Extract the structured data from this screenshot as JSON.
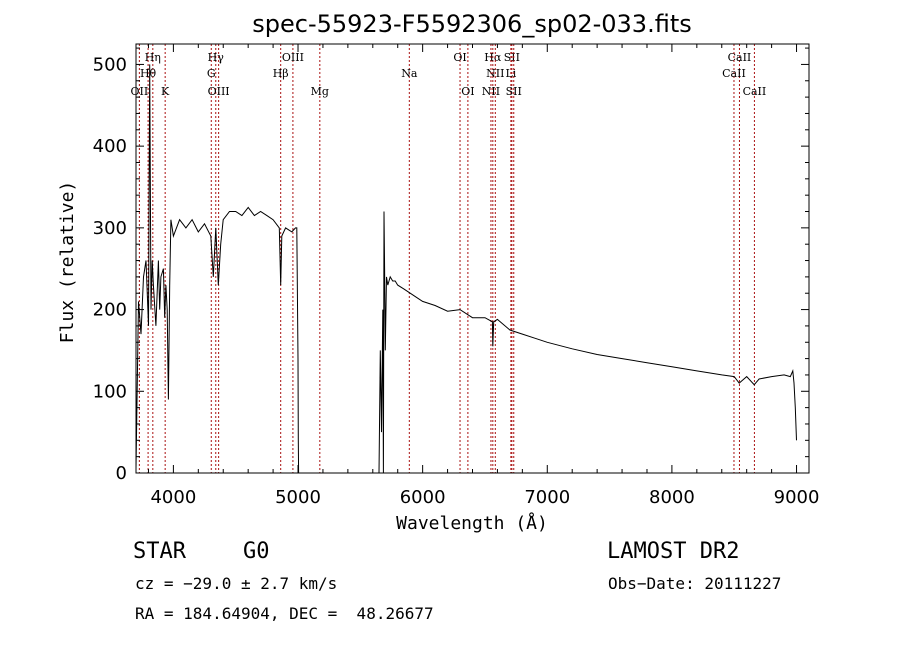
{
  "chart_data": {
    "type": "line",
    "title": "spec-55923-F5592306_sp02-033.fits",
    "xlabel": "Wavelength (Å)",
    "ylabel": "Flux (relative)",
    "xlim": [
      3700,
      9100
    ],
    "ylim": [
      0,
      525
    ],
    "xticks": [
      4000,
      5000,
      6000,
      7000,
      8000,
      9000
    ],
    "yticks": [
      0,
      100,
      200,
      300,
      400,
      500
    ],
    "grid": false,
    "series": [
      {
        "x": [
          3700,
          3720,
          3740,
          3760,
          3780,
          3800,
          3810,
          3820,
          3830,
          3840,
          3860,
          3880,
          3890,
          3900,
          3920,
          3930,
          3940,
          3950,
          3960,
          3970,
          3980,
          4000,
          4050,
          4100,
          4150,
          4200,
          4250,
          4300,
          4320,
          4340,
          4360,
          4380,
          4400,
          4450,
          4500,
          4550,
          4600,
          4650,
          4700,
          4750,
          4800,
          4850,
          4861,
          4870,
          4900,
          4950,
          4980,
          4990,
          5000,
          5002,
          5005
        ],
        "y": [
          5,
          210,
          170,
          240,
          260,
          180,
          500,
          200,
          260,
          230,
          180,
          260,
          200,
          240,
          250,
          190,
          230,
          200,
          90,
          230,
          310,
          290,
          310,
          300,
          310,
          295,
          305,
          290,
          240,
          300,
          230,
          280,
          310,
          320,
          320,
          315,
          325,
          315,
          320,
          315,
          310,
          300,
          230,
          290,
          300,
          295,
          300,
          300,
          140,
          40,
          0
        ]
      },
      {
        "x": [
          5650,
          5660,
          5670,
          5680,
          5685,
          5690,
          5695,
          5700,
          5710,
          5720,
          5740,
          5760,
          5780,
          5800,
          5850,
          5900,
          5950,
          6000,
          6100,
          6200,
          6300,
          6400,
          6500,
          6560,
          6563,
          6570,
          6600,
          6700,
          6800,
          6900,
          7000,
          7200,
          7400,
          7600,
          7800,
          8000,
          8200,
          8400,
          8500,
          8540,
          8600,
          8660,
          8700,
          8800,
          8900,
          8950,
          8970,
          8980,
          8990,
          9000
        ],
        "y": [
          0,
          150,
          50,
          200,
          0,
          320,
          250,
          150,
          240,
          230,
          240,
          235,
          235,
          230,
          225,
          220,
          215,
          210,
          205,
          198,
          200,
          190,
          190,
          185,
          155,
          185,
          188,
          175,
          170,
          165,
          160,
          152,
          145,
          140,
          135,
          130,
          125,
          120,
          118,
          110,
          118,
          108,
          115,
          118,
          120,
          118,
          125,
          110,
          80,
          40
        ]
      }
    ],
    "lines": [
      {
        "name": "OII",
        "wave": 3727,
        "row": 3
      },
      {
        "name": "Hη",
        "wave": 3835,
        "row": 1
      },
      {
        "name": "Hθ",
        "wave": 3797,
        "row": 2
      },
      {
        "name": "K",
        "wave": 3934,
        "row": 3
      },
      {
        "name": "Hγ",
        "wave": 4340,
        "row": 1
      },
      {
        "name": "G",
        "wave": 4304,
        "row": 2
      },
      {
        "name": "OIII",
        "wave": 4363,
        "row": 3
      },
      {
        "name": "Hβ",
        "wave": 4861,
        "row": 2
      },
      {
        "name": "OIII",
        "wave": 4959,
        "row": 1
      },
      {
        "name": "Mg",
        "wave": 5175,
        "row": 3
      },
      {
        "name": "Na",
        "wave": 5893,
        "row": 2
      },
      {
        "name": "OI",
        "wave": 6300,
        "row": 1
      },
      {
        "name": "OI",
        "wave": 6363,
        "row": 3
      },
      {
        "name": "Hα",
        "wave": 6563,
        "row": 1
      },
      {
        "name": "NII",
        "wave": 6583,
        "row": 2
      },
      {
        "name": "NII",
        "wave": 6548,
        "row": 3
      },
      {
        "name": "SII",
        "wave": 6716,
        "row": 1
      },
      {
        "name": "Li",
        "wave": 6708,
        "row": 2
      },
      {
        "name": "SII",
        "wave": 6731,
        "row": 3
      },
      {
        "name": "CaII",
        "wave": 8542,
        "row": 1
      },
      {
        "name": "CaII",
        "wave": 8498,
        "row": 2
      },
      {
        "name": "CaII",
        "wave": 8662,
        "row": 3
      }
    ]
  },
  "info": {
    "object_class": "STAR",
    "subclass": "G0",
    "survey": "LAMOST DR2",
    "cz": "cz = −29.0 ± 2.7 km/s",
    "obs_date": "Obs−Date: 20111227",
    "coords": "RA = 184.64904, DEC =  48.26677"
  }
}
